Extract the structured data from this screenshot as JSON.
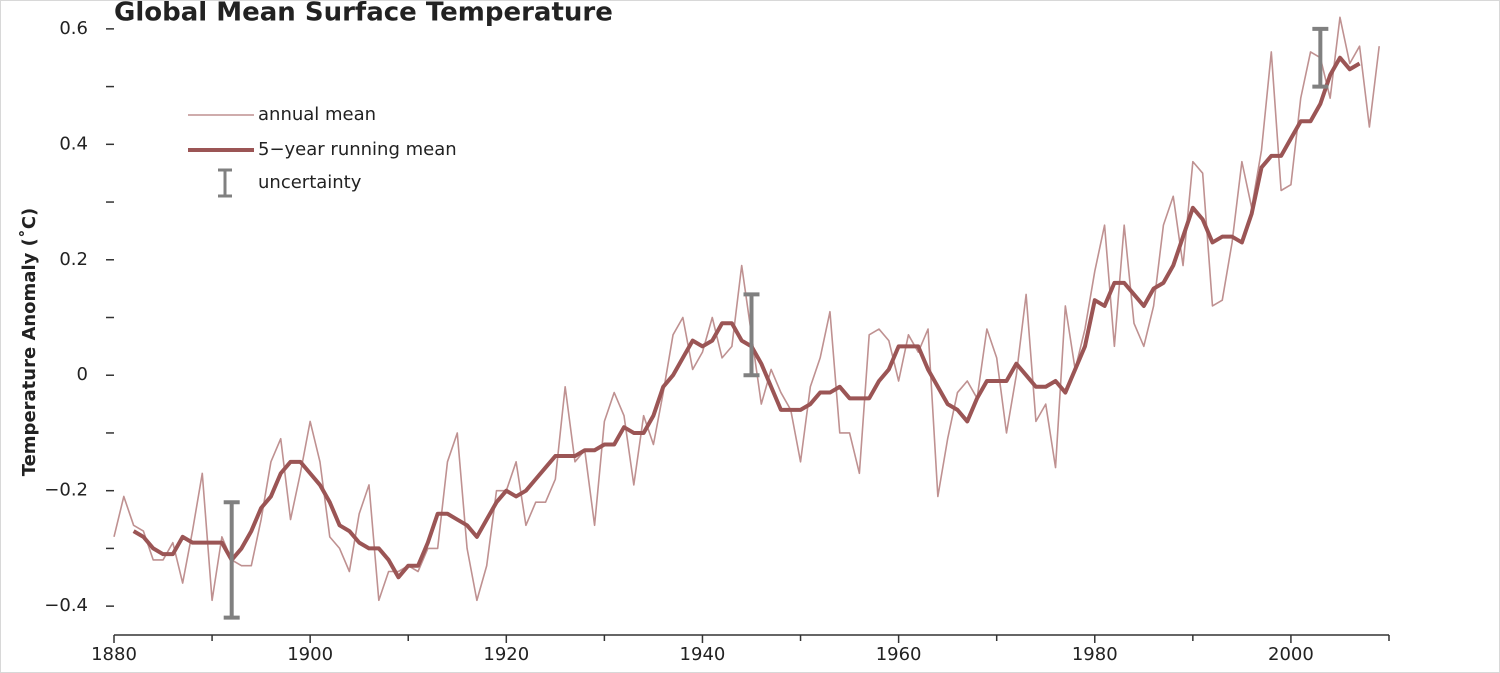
{
  "chart_data": {
    "type": "line",
    "title": "Global Mean Surface Temperature",
    "y_label": "Temperature Anomaly (˚C)",
    "xlim": [
      1880,
      2010
    ],
    "ylim": [
      -0.45,
      0.65
    ],
    "xticks": [
      1880,
      1900,
      1920,
      1940,
      1960,
      1980,
      2000
    ],
    "xminor": [
      1890,
      1910,
      1930,
      1950,
      1970,
      1990,
      2010
    ],
    "yticks": [
      {
        "value": -0.4,
        "label": "−0.4"
      },
      {
        "value": -0.2,
        "label": "−0.2"
      },
      0,
      0.2,
      0.4,
      0.6
    ],
    "yminor": [
      -0.3,
      -0.1,
      0.1,
      0.3,
      0.5
    ],
    "legend": "upper left",
    "series": [
      {
        "name": "annual mean",
        "color": "#bf9191",
        "x": [
          1880,
          1881,
          1882,
          1883,
          1884,
          1885,
          1886,
          1887,
          1888,
          1889,
          1890,
          1891,
          1892,
          1893,
          1894,
          1895,
          1896,
          1897,
          1898,
          1899,
          1900,
          1901,
          1902,
          1903,
          1904,
          1905,
          1906,
          1907,
          1908,
          1909,
          1910,
          1911,
          1912,
          1913,
          1914,
          1915,
          1916,
          1917,
          1918,
          1919,
          1920,
          1921,
          1922,
          1923,
          1924,
          1925,
          1926,
          1927,
          1928,
          1929,
          1930,
          1931,
          1932,
          1933,
          1934,
          1935,
          1936,
          1937,
          1938,
          1939,
          1940,
          1941,
          1942,
          1943,
          1944,
          1945,
          1946,
          1947,
          1948,
          1949,
          1950,
          1951,
          1952,
          1953,
          1954,
          1955,
          1956,
          1957,
          1958,
          1959,
          1960,
          1961,
          1962,
          1963,
          1964,
          1965,
          1966,
          1967,
          1968,
          1969,
          1970,
          1971,
          1972,
          1973,
          1974,
          1975,
          1976,
          1977,
          1978,
          1979,
          1980,
          1981,
          1982,
          1983,
          1984,
          1985,
          1986,
          1987,
          1988,
          1989,
          1990,
          1991,
          1992,
          1993,
          1994,
          1995,
          1996,
          1997,
          1998,
          1999,
          2000,
          2001,
          2002,
          2003,
          2004,
          2005,
          2006,
          2007,
          2008,
          2009
        ],
        "values": [
          -0.28,
          -0.21,
          -0.26,
          -0.27,
          -0.32,
          -0.32,
          -0.29,
          -0.36,
          -0.27,
          -0.17,
          -0.39,
          -0.28,
          -0.32,
          -0.33,
          -0.33,
          -0.25,
          -0.15,
          -0.11,
          -0.25,
          -0.17,
          -0.08,
          -0.15,
          -0.28,
          -0.3,
          -0.34,
          -0.24,
          -0.19,
          -0.39,
          -0.34,
          -0.34,
          -0.33,
          -0.34,
          -0.3,
          -0.3,
          -0.15,
          -0.1,
          -0.3,
          -0.39,
          -0.33,
          -0.2,
          -0.2,
          -0.15,
          -0.26,
          -0.22,
          -0.22,
          -0.18,
          -0.02,
          -0.15,
          -0.13,
          -0.26,
          -0.08,
          -0.03,
          -0.07,
          -0.19,
          -0.07,
          -0.12,
          -0.03,
          0.07,
          0.1,
          0.01,
          0.04,
          0.1,
          0.03,
          0.05,
          0.19,
          0.07,
          -0.05,
          0.01,
          -0.03,
          -0.06,
          -0.15,
          -0.02,
          0.03,
          0.11,
          -0.1,
          -0.1,
          -0.17,
          0.07,
          0.08,
          0.06,
          -0.01,
          0.07,
          0.04,
          0.08,
          -0.21,
          -0.11,
          -0.03,
          -0.01,
          -0.04,
          0.08,
          0.03,
          -0.1,
          0.0,
          0.14,
          -0.08,
          -0.05,
          -0.16,
          0.12,
          0.01,
          0.08,
          0.18,
          0.26,
          0.05,
          0.26,
          0.09,
          0.05,
          0.12,
          0.26,
          0.31,
          0.19,
          0.37,
          0.35,
          0.12,
          0.13,
          0.23,
          0.37,
          0.29,
          0.39,
          0.56,
          0.32,
          0.33,
          0.48,
          0.56,
          0.55,
          0.48,
          0.62,
          0.54,
          0.57,
          0.43,
          0.57
        ]
      },
      {
        "name": "5−year running mean",
        "color": "#9b5555",
        "x": [
          1882,
          1883,
          1884,
          1885,
          1886,
          1887,
          1888,
          1889,
          1890,
          1891,
          1892,
          1893,
          1894,
          1895,
          1896,
          1897,
          1898,
          1899,
          1900,
          1901,
          1902,
          1903,
          1904,
          1905,
          1906,
          1907,
          1908,
          1909,
          1910,
          1911,
          1912,
          1913,
          1914,
          1915,
          1916,
          1917,
          1918,
          1919,
          1920,
          1921,
          1922,
          1923,
          1924,
          1925,
          1926,
          1927,
          1928,
          1929,
          1930,
          1931,
          1932,
          1933,
          1934,
          1935,
          1936,
          1937,
          1938,
          1939,
          1940,
          1941,
          1942,
          1943,
          1944,
          1945,
          1946,
          1947,
          1948,
          1949,
          1950,
          1951,
          1952,
          1953,
          1954,
          1955,
          1956,
          1957,
          1958,
          1959,
          1960,
          1961,
          1962,
          1963,
          1964,
          1965,
          1966,
          1967,
          1968,
          1969,
          1970,
          1971,
          1972,
          1973,
          1974,
          1975,
          1976,
          1977,
          1978,
          1979,
          1980,
          1981,
          1982,
          1983,
          1984,
          1985,
          1986,
          1987,
          1988,
          1989,
          1990,
          1991,
          1992,
          1993,
          1994,
          1995,
          1996,
          1997,
          1998,
          1999,
          2000,
          2001,
          2002,
          2003,
          2004,
          2005,
          2006,
          2007
        ],
        "values": [
          -0.27,
          -0.28,
          -0.3,
          -0.31,
          -0.31,
          -0.28,
          -0.29,
          -0.29,
          -0.29,
          -0.29,
          -0.32,
          -0.3,
          -0.27,
          -0.23,
          -0.21,
          -0.17,
          -0.15,
          -0.15,
          -0.17,
          -0.19,
          -0.22,
          -0.26,
          -0.27,
          -0.29,
          -0.3,
          -0.3,
          -0.32,
          -0.35,
          -0.33,
          -0.33,
          -0.29,
          -0.24,
          -0.24,
          -0.25,
          -0.26,
          -0.28,
          -0.25,
          -0.22,
          -0.2,
          -0.21,
          -0.2,
          -0.18,
          -0.16,
          -0.14,
          -0.14,
          -0.14,
          -0.13,
          -0.13,
          -0.12,
          -0.12,
          -0.09,
          -0.1,
          -0.1,
          -0.07,
          -0.02,
          0.0,
          0.03,
          0.06,
          0.05,
          0.06,
          0.09,
          0.09,
          0.06,
          0.05,
          0.02,
          -0.02,
          -0.06,
          -0.06,
          -0.06,
          -0.05,
          -0.03,
          -0.03,
          -0.02,
          -0.04,
          -0.04,
          -0.04,
          -0.01,
          0.01,
          0.05,
          0.05,
          0.05,
          0.01,
          -0.02,
          -0.05,
          -0.06,
          -0.08,
          -0.04,
          -0.01,
          -0.01,
          -0.01,
          0.02,
          0.0,
          -0.02,
          -0.02,
          -0.01,
          -0.03,
          0.01,
          0.05,
          0.13,
          0.12,
          0.16,
          0.16,
          0.14,
          0.12,
          0.15,
          0.16,
          0.19,
          0.24,
          0.29,
          0.27,
          0.23,
          0.24,
          0.24,
          0.23,
          0.28,
          0.36,
          0.38,
          0.38,
          0.41,
          0.44,
          0.44,
          0.47,
          0.52,
          0.55,
          0.53,
          0.54
        ]
      },
      {
        "name": "uncertainty",
        "color": "#808080",
        "x": [
          1892,
          1945,
          2003
        ],
        "values": [
          -0.32,
          0.07,
          0.55
        ],
        "errors": [
          0.1,
          0.07,
          0.05
        ]
      }
    ]
  }
}
